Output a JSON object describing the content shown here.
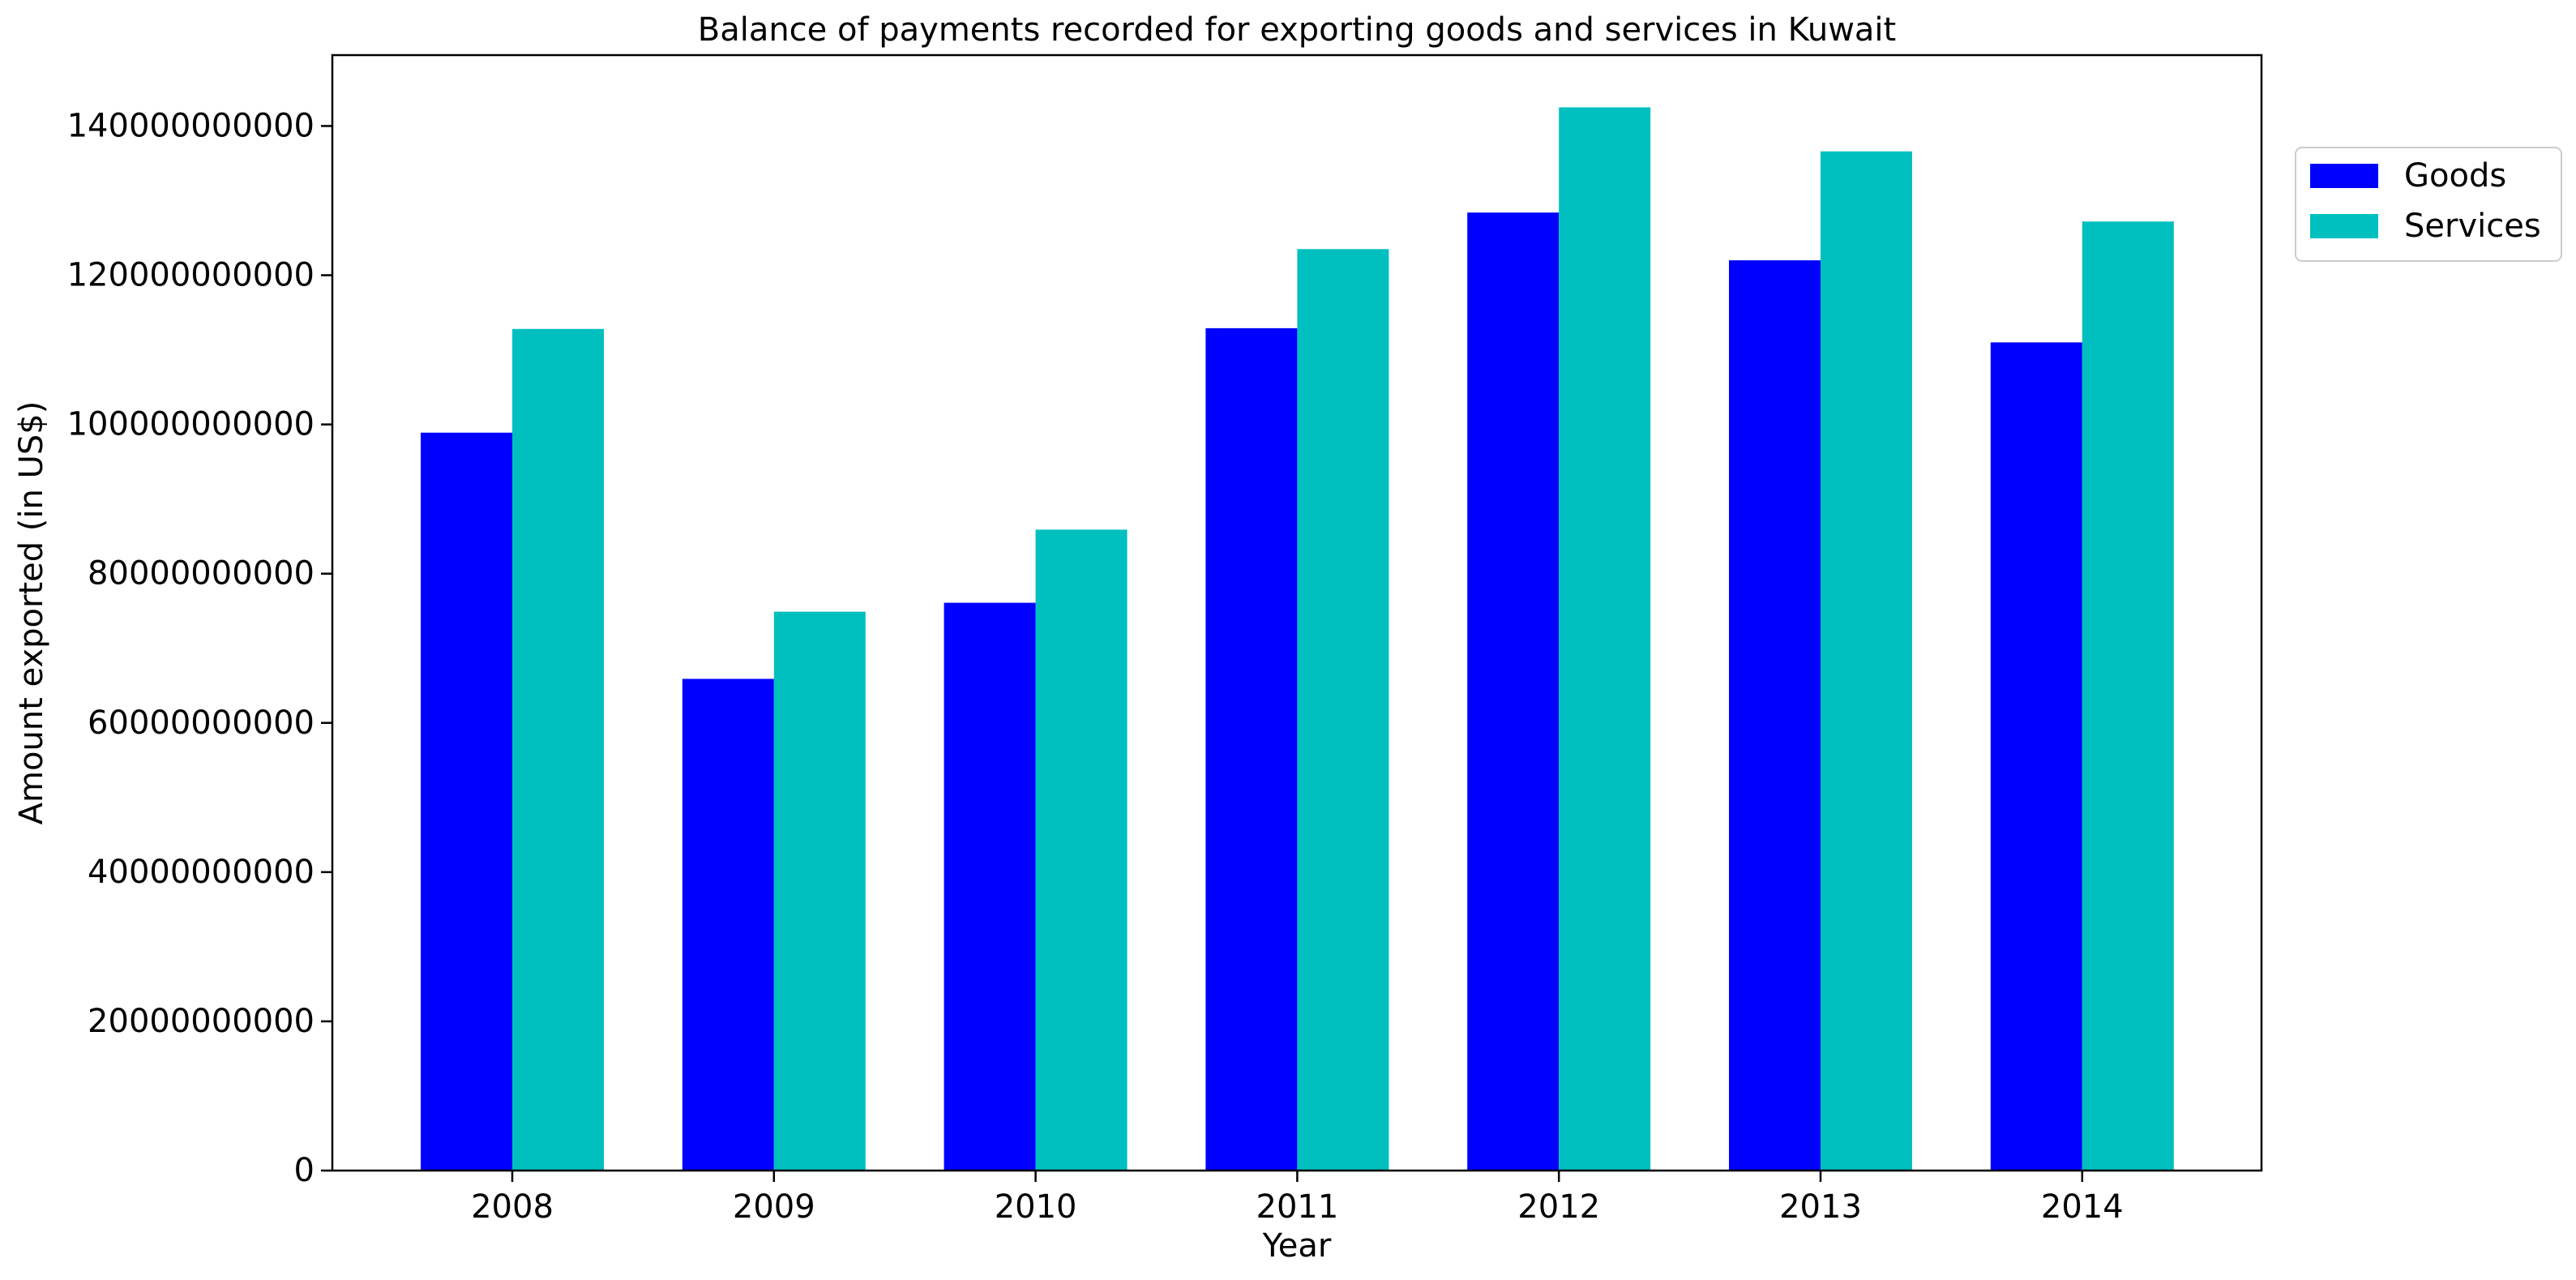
{
  "chart_data": {
    "type": "bar",
    "title": "Balance of payments recorded for exporting goods and services in Kuwait",
    "xlabel": "Year",
    "ylabel": "Amount exported (in US$)",
    "categories": [
      "2008",
      "2009",
      "2010",
      "2011",
      "2012",
      "2013",
      "2014"
    ],
    "series": [
      {
        "name": "Goods",
        "color": "#0000ff",
        "values": [
          98900000000,
          65900000000,
          76100000000,
          112900000000,
          128400000000,
          122000000000,
          111000000000
        ]
      },
      {
        "name": "Services",
        "color": "#00bfbf",
        "values": [
          112800000000,
          74900000000,
          85900000000,
          123500000000,
          142500000000,
          136600000000,
          127200000000
        ]
      }
    ],
    "ylim": [
      0,
      149500000000
    ],
    "yticks": [
      0,
      20000000000,
      40000000000,
      60000000000,
      80000000000,
      100000000000,
      120000000000,
      140000000000
    ],
    "ytick_labels": [
      "0",
      "20000000000",
      "40000000000",
      "60000000000",
      "80000000000",
      "100000000000",
      "120000000000",
      "140000000000"
    ],
    "grid": false,
    "legend_position": "outside-right"
  }
}
